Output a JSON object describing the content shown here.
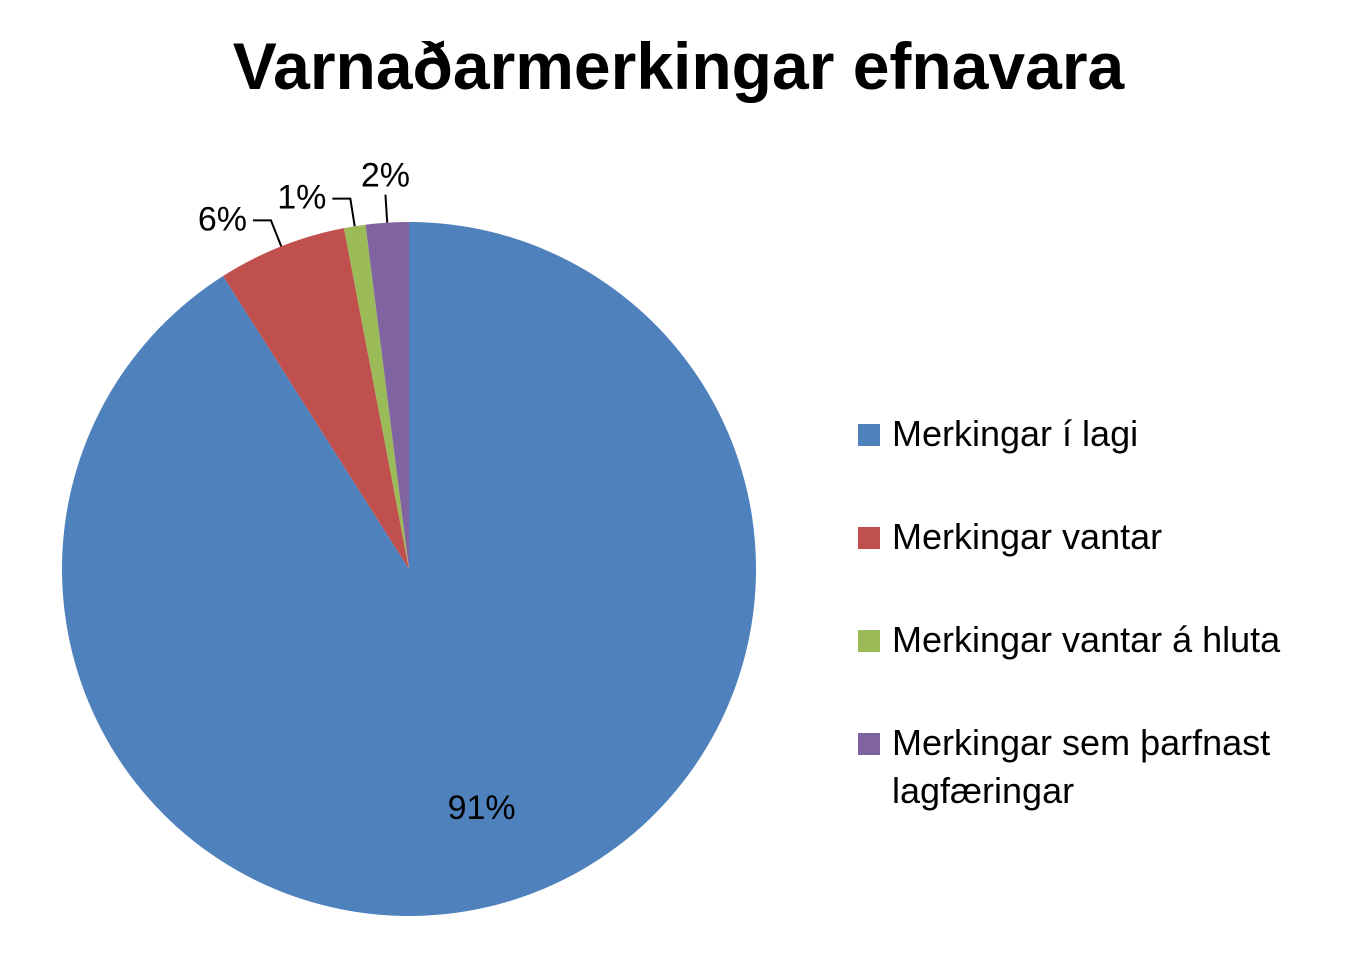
{
  "chart_data": {
    "type": "pie",
    "title": "Varnaðarmerkingar efnavara",
    "categories": [
      "Merkingar í lagi",
      "Merkingar vantar",
      "Merkingar vantar á hluta",
      "Merkingar sem þarfnast lagfæringar"
    ],
    "values": [
      91,
      6,
      1,
      2
    ],
    "data_labels": [
      "91%",
      "6%",
      "1%",
      "2%"
    ],
    "colors": [
      "#4f81bd",
      "#c0504d",
      "#9bbb59",
      "#8064a2"
    ],
    "legend_position": "right",
    "start_angle": "12 o'clock, counterclockwise"
  }
}
